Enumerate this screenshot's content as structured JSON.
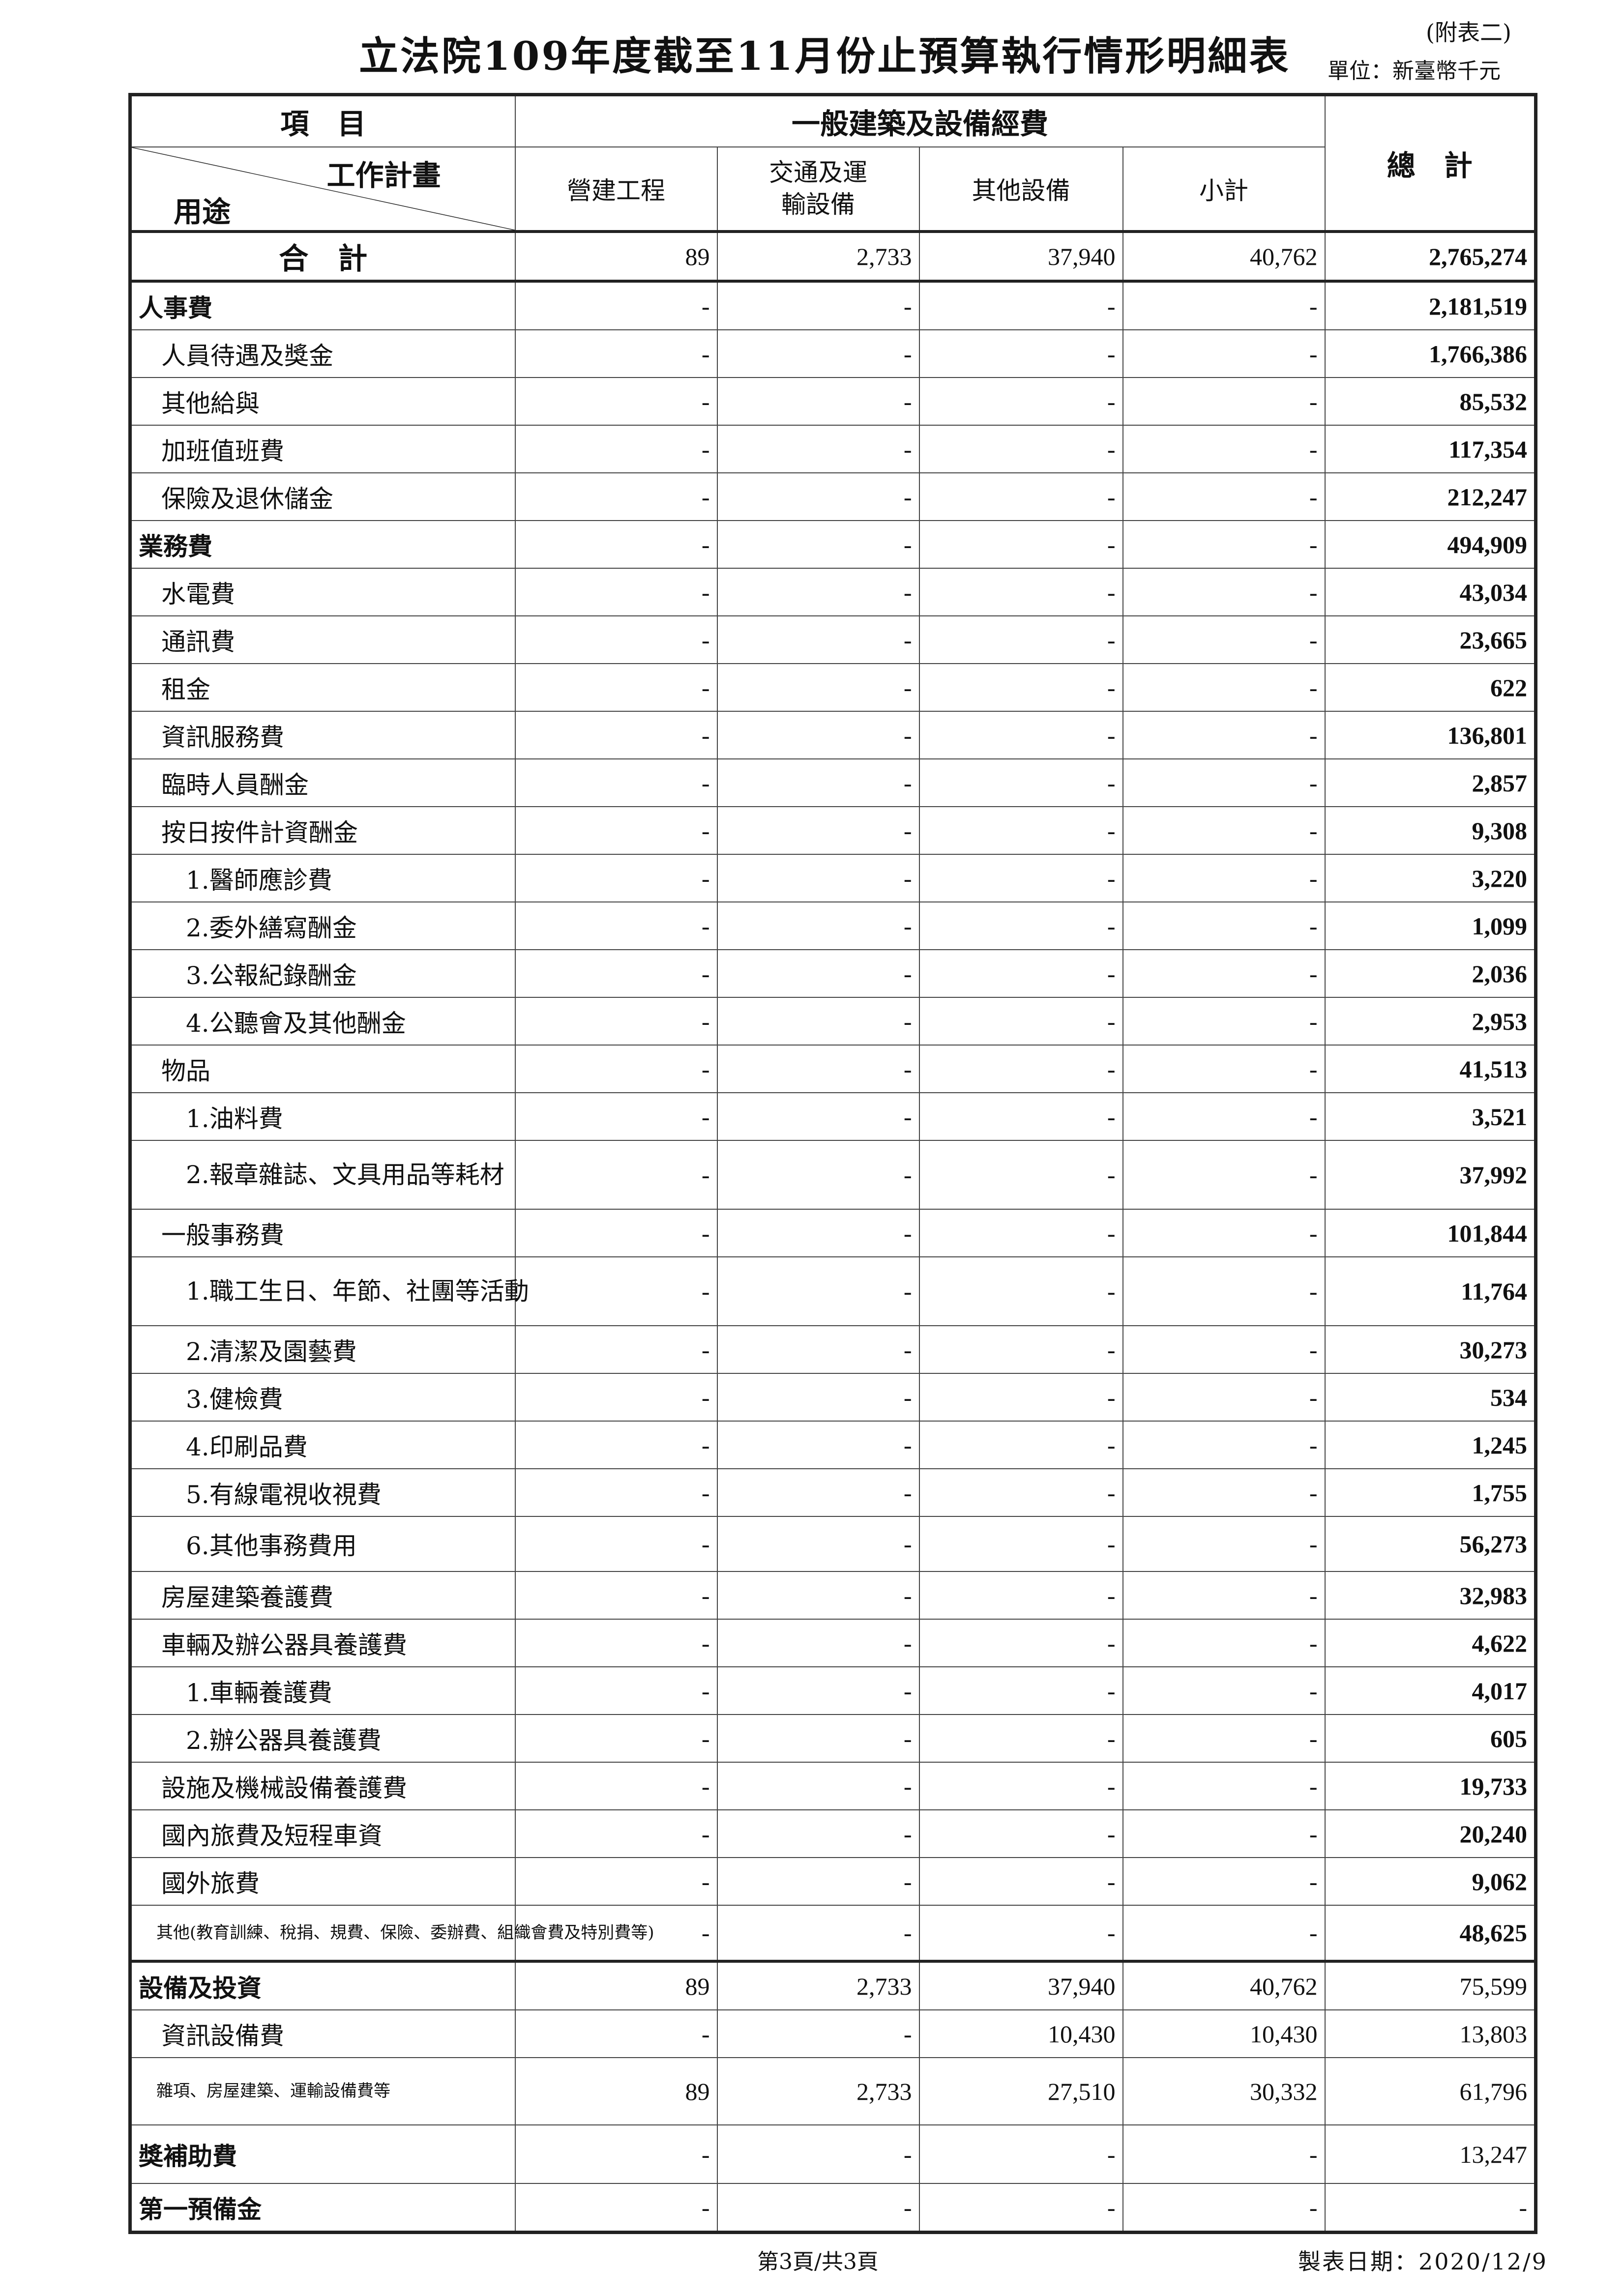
{
  "header": {
    "title": "立法院109年度截至11月份止預算執行情形明細表",
    "annex": "(附表二)",
    "unit": "單位：新臺幣千元"
  },
  "table": {
    "item_header": "項　目",
    "group_header": "一般建築及設備經費",
    "plan_label": "工作計畫",
    "use_label": "用途",
    "total_header": "總　計",
    "columns": [
      "營建工程",
      "交通及運輸設備",
      "其他設備",
      "小計"
    ],
    "grand_total": {
      "label": "合　計",
      "values": [
        "89",
        "2,733",
        "37,940",
        "40,762",
        "2,765,274"
      ]
    },
    "rows": [
      {
        "label": "人事費",
        "level": 0,
        "bold": true,
        "values": [
          "-",
          "-",
          "-",
          "-",
          "2,181,519"
        ]
      },
      {
        "label": "人員待遇及獎金",
        "level": 1,
        "values": [
          "-",
          "-",
          "-",
          "-",
          "1,766,386"
        ]
      },
      {
        "label": "其他給與",
        "level": 1,
        "values": [
          "-",
          "-",
          "-",
          "-",
          "85,532"
        ]
      },
      {
        "label": "加班值班費",
        "level": 1,
        "values": [
          "-",
          "-",
          "-",
          "-",
          "117,354"
        ]
      },
      {
        "label": "保險及退休儲金",
        "level": 1,
        "values": [
          "-",
          "-",
          "-",
          "-",
          "212,247"
        ]
      },
      {
        "label": "業務費",
        "level": 0,
        "bold": true,
        "values": [
          "-",
          "-",
          "-",
          "-",
          "494,909"
        ]
      },
      {
        "label": "水電費",
        "level": 1,
        "values": [
          "-",
          "-",
          "-",
          "-",
          "43,034"
        ]
      },
      {
        "label": "通訊費",
        "level": 1,
        "values": [
          "-",
          "-",
          "-",
          "-",
          "23,665"
        ]
      },
      {
        "label": "租金",
        "level": 1,
        "values": [
          "-",
          "-",
          "-",
          "-",
          "622"
        ]
      },
      {
        "label": "資訊服務費",
        "level": 1,
        "values": [
          "-",
          "-",
          "-",
          "-",
          "136,801"
        ]
      },
      {
        "label": "臨時人員酬金",
        "level": 1,
        "values": [
          "-",
          "-",
          "-",
          "-",
          "2,857"
        ]
      },
      {
        "label": "按日按件計資酬金",
        "level": 1,
        "values": [
          "-",
          "-",
          "-",
          "-",
          "9,308"
        ]
      },
      {
        "label": "1.醫師應診費",
        "level": 2,
        "values": [
          "-",
          "-",
          "-",
          "-",
          "3,220"
        ]
      },
      {
        "label": "2.委外繕寫酬金",
        "level": 2,
        "values": [
          "-",
          "-",
          "-",
          "-",
          "1,099"
        ]
      },
      {
        "label": "3.公報紀錄酬金",
        "level": 2,
        "values": [
          "-",
          "-",
          "-",
          "-",
          "2,036"
        ]
      },
      {
        "label": "4.公聽會及其他酬金",
        "level": 2,
        "values": [
          "-",
          "-",
          "-",
          "-",
          "2,953"
        ]
      },
      {
        "label": "物品",
        "level": 1,
        "values": [
          "-",
          "-",
          "-",
          "-",
          "41,513"
        ]
      },
      {
        "label": "1.油料費",
        "level": 2,
        "values": [
          "-",
          "-",
          "-",
          "-",
          "3,521"
        ]
      },
      {
        "label": "2.報章雜誌、文具用品等耗材",
        "level": 2,
        "tall": "tall",
        "values": [
          "-",
          "-",
          "-",
          "-",
          "37,992"
        ]
      },
      {
        "label": "一般事務費",
        "level": 1,
        "values": [
          "-",
          "-",
          "-",
          "-",
          "101,844"
        ]
      },
      {
        "label": "1.職工生日、年節、社團等活動",
        "level": 2,
        "tall": "tall",
        "values": [
          "-",
          "-",
          "-",
          "-",
          "11,764"
        ]
      },
      {
        "label": "2.清潔及園藝費",
        "level": 2,
        "values": [
          "-",
          "-",
          "-",
          "-",
          "30,273"
        ]
      },
      {
        "label": "3.健檢費",
        "level": 2,
        "values": [
          "-",
          "-",
          "-",
          "-",
          "534"
        ]
      },
      {
        "label": "4.印刷品費",
        "level": 2,
        "values": [
          "-",
          "-",
          "-",
          "-",
          "1,245"
        ]
      },
      {
        "label": "5.有線電視收視費",
        "level": 2,
        "values": [
          "-",
          "-",
          "-",
          "-",
          "1,755"
        ]
      },
      {
        "label": "6.其他事務費用",
        "level": 2,
        "tall": "t114",
        "values": [
          "-",
          "-",
          "-",
          "-",
          "56,273"
        ]
      },
      {
        "label": "房屋建築養護費",
        "level": 1,
        "values": [
          "-",
          "-",
          "-",
          "-",
          "32,983"
        ]
      },
      {
        "label": "車輛及辦公器具養護費",
        "level": 1,
        "values": [
          "-",
          "-",
          "-",
          "-",
          "4,622"
        ]
      },
      {
        "label": "1.車輛養護費",
        "level": 2,
        "values": [
          "-",
          "-",
          "-",
          "-",
          "4,017"
        ]
      },
      {
        "label": "2.辦公器具養護費",
        "level": 2,
        "values": [
          "-",
          "-",
          "-",
          "-",
          "605"
        ]
      },
      {
        "label": "設施及機械設備養護費",
        "level": 1,
        "values": [
          "-",
          "-",
          "-",
          "-",
          "19,733"
        ]
      },
      {
        "label": "國內旅費及短程車資",
        "level": 1,
        "values": [
          "-",
          "-",
          "-",
          "-",
          "20,240"
        ]
      },
      {
        "label": "國外旅費",
        "level": 1,
        "values": [
          "-",
          "-",
          "-",
          "-",
          "9,062"
        ]
      },
      {
        "label": "其他(教育訓練、稅捐、規費、保險、委辦費、組織會費及特別費等)",
        "level": 1,
        "small": true,
        "tall": "t114",
        "values": [
          "-",
          "-",
          "-",
          "-",
          "48,625"
        ]
      },
      {
        "label": "設備及投資",
        "level": 0,
        "bold": true,
        "thick": true,
        "light_total": true,
        "values": [
          "89",
          "2,733",
          "37,940",
          "40,762",
          "75,599"
        ]
      },
      {
        "label": "資訊設備費",
        "level": 1,
        "light_total": true,
        "values": [
          "-",
          "-",
          "10,430",
          "10,430",
          "13,803"
        ]
      },
      {
        "label": "雜項、房屋建築、運輸設備費等",
        "level": 1,
        "small": true,
        "tall": "t135",
        "light_total": true,
        "values": [
          "89",
          "2,733",
          "27,510",
          "30,332",
          "61,796"
        ]
      },
      {
        "label": "獎補助費",
        "level": 0,
        "bold": true,
        "tall": "t117",
        "light_total": true,
        "values": [
          "-",
          "-",
          "-",
          "-",
          "13,247"
        ]
      },
      {
        "label": "第一預備金",
        "level": 0,
        "bold": true,
        "light_total": true,
        "values": [
          "-",
          "-",
          "-",
          "-",
          "-"
        ]
      }
    ]
  },
  "footer": {
    "page": "第3頁/共3頁",
    "date": "製表日期：2020/12/9"
  }
}
